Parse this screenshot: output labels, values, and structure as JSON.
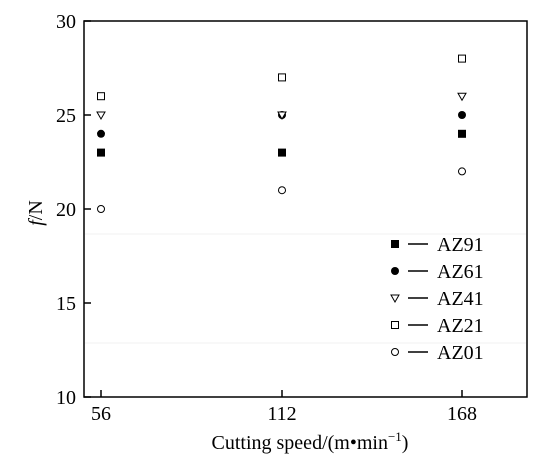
{
  "chart_data": {
    "type": "scatter",
    "title": "",
    "xlabel": "Cutting speed/(m•min",
    "xlabel_sup": "−1",
    "xlabel_end": ")",
    "ylabel_italic": "f",
    "ylabel_rest": "/N",
    "x": [
      56,
      112,
      168
    ],
    "x_tick_labels": [
      "56",
      "112",
      "168"
    ],
    "yticks": [
      10,
      15,
      20,
      25,
      30
    ],
    "y_tick_labels": [
      "10",
      "15",
      "20",
      "25",
      "30"
    ],
    "ylim": [
      10,
      30
    ],
    "grid": false,
    "legend_position": "bottom-right",
    "series": [
      {
        "name": "AZ91",
        "marker": "square-filled",
        "values": [
          23,
          23,
          24
        ]
      },
      {
        "name": "AZ61",
        "marker": "circle-filled",
        "values": [
          24,
          25,
          25
        ]
      },
      {
        "name": "AZ41",
        "marker": "triangle-down-open",
        "values": [
          25,
          25,
          26
        ]
      },
      {
        "name": "AZ21",
        "marker": "square-open",
        "values": [
          26,
          27,
          28
        ]
      },
      {
        "name": "AZ01",
        "marker": "circle-open",
        "values": [
          20,
          21,
          22
        ]
      }
    ]
  }
}
